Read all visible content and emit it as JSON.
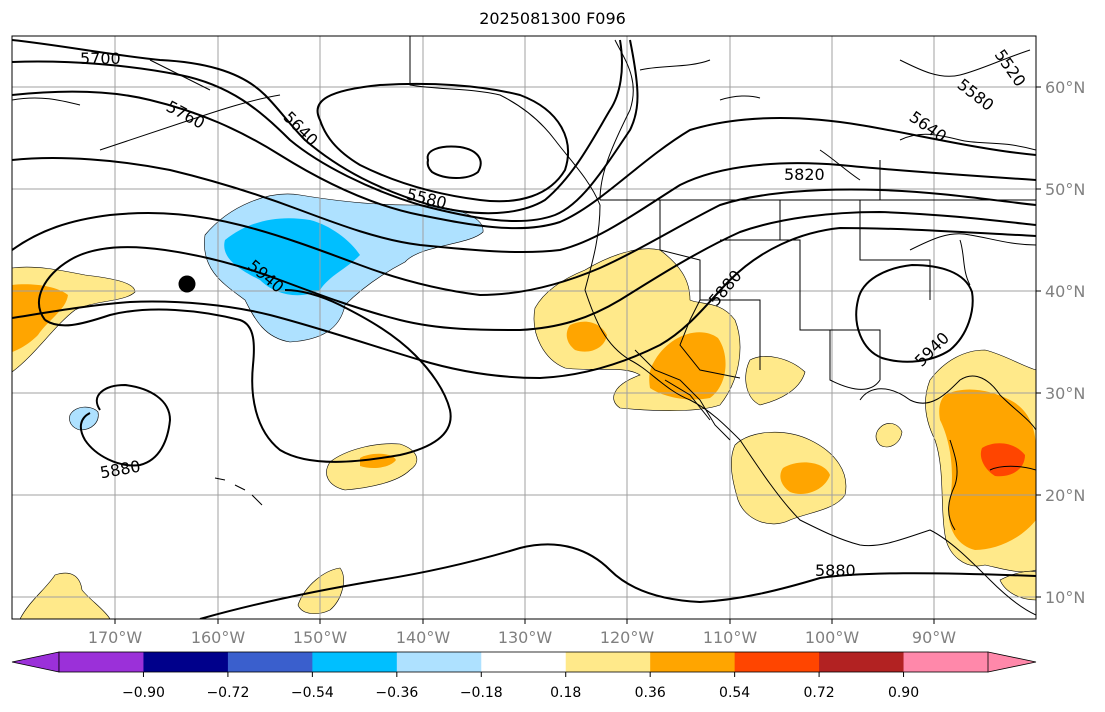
{
  "title": "2025081300 F096",
  "lon_labels": [
    "170°W",
    "160°W",
    "150°W",
    "140°W",
    "130°W",
    "120°W",
    "110°W",
    "100°W",
    "90°W"
  ],
  "lat_labels": [
    "60°N",
    "50°N",
    "40°N",
    "30°N",
    "20°N",
    "10°N"
  ],
  "contour_labels": [
    "5700",
    "5760",
    "5640",
    "5580",
    "5520",
    "5580",
    "5640",
    "5820",
    "5880",
    "5940",
    "5940",
    "5880",
    "5880"
  ],
  "colorbar": {
    "colors": [
      "#9b30d9",
      "#00008b",
      "#3a5fcd",
      "#00bfff",
      "#aee1ff",
      "#ffffff",
      "#ffe98a",
      "#ffa500",
      "#ff4500",
      "#b22222",
      "#ff88aa"
    ],
    "labels": [
      "−0.90",
      "−0.72",
      "−0.54",
      "−0.36",
      "−0.18",
      "0.18",
      "0.36",
      "0.54",
      "0.72",
      "0.90"
    ]
  },
  "colors": {
    "grid": "#a0a0a0",
    "contour": "#000000",
    "marker": "#000000"
  }
}
